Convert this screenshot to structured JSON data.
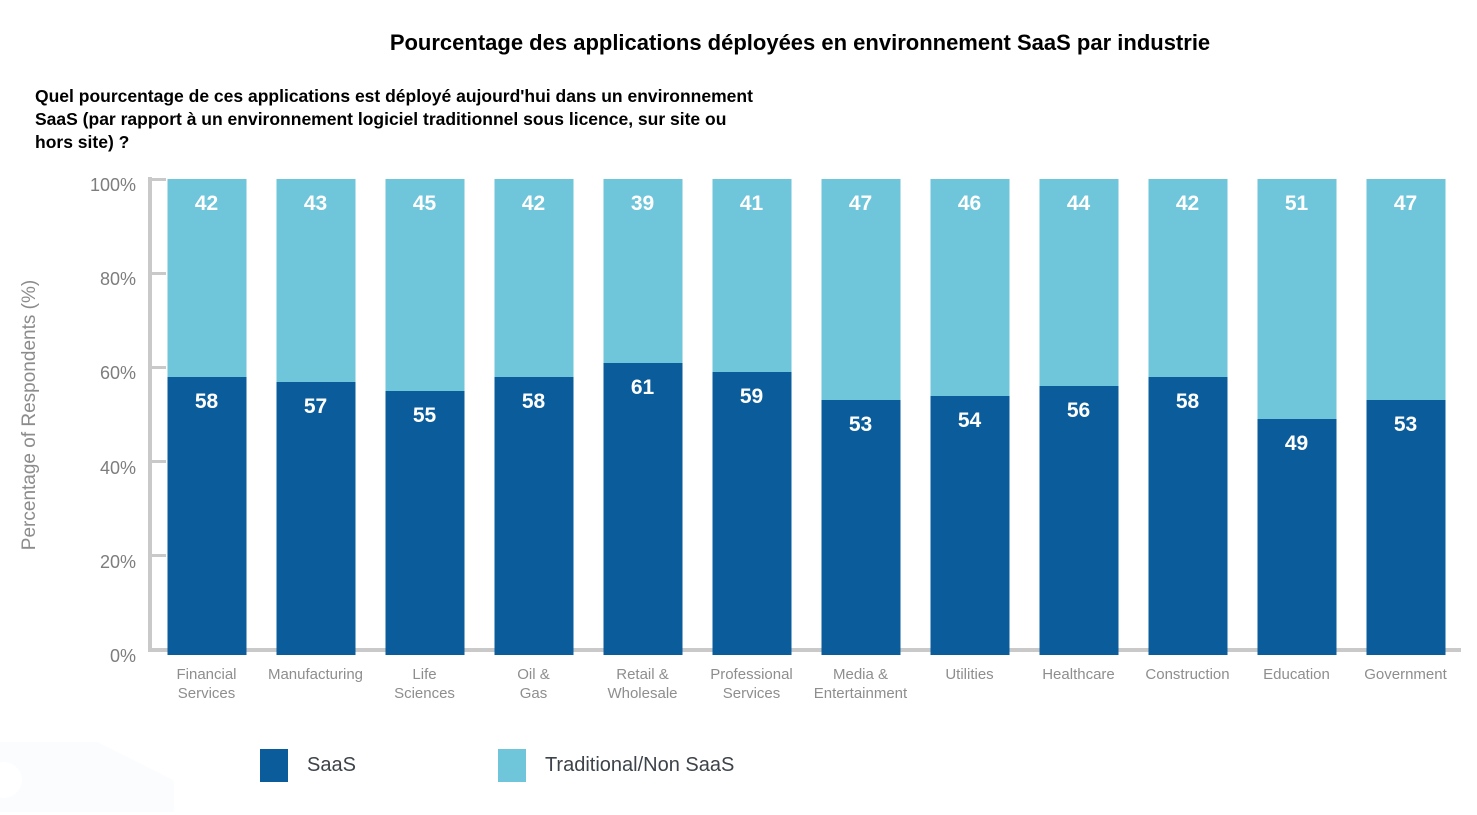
{
  "subtitle_question": "Quel pourcentage de ces applications est déployé aujourd'hui dans un environnement\nSaaS (par rapport à un environnement logiciel traditionnel sous licence, sur site ou\nhors site) ?",
  "chart_data": {
    "type": "bar",
    "stacked": true,
    "title": "Pourcentage des applications déployées en environnement SaaS par industrie",
    "ylabel": "Percentage of Respondents (%)",
    "ylim": [
      0,
      100
    ],
    "yticks": [
      "0%",
      "20%",
      "40%",
      "60%",
      "80%",
      "100%"
    ],
    "grid": false,
    "legend_position": "bottom",
    "categories": [
      "Financial\nServices",
      "Manufacturing",
      "Life\nSciences",
      "Oil &\nGas",
      "Retail &\nWholesale",
      "Professional\nServices",
      "Media &\nEntertainment",
      "Utilities",
      "Healthcare",
      "Construction",
      "Education",
      "Government"
    ],
    "series": [
      {
        "name": "SaaS",
        "color": "#0a5c9b",
        "values": [
          58,
          57,
          55,
          58,
          61,
          59,
          53,
          54,
          56,
          58,
          49,
          53
        ]
      },
      {
        "name": "Traditional/Non SaaS",
        "color": "#6fc5d9",
        "values": [
          42,
          43,
          45,
          42,
          39,
          41,
          47,
          46,
          44,
          42,
          51,
          47
        ]
      }
    ]
  },
  "colors": {
    "axis_line": "#c9c9c9",
    "tick_text": "#7d7d7d",
    "category_text": "#8e8e8e",
    "axis_title_text": "#8c8c8c",
    "legend_text": "#3d434a",
    "bar_label_text": "#ffffff",
    "title_text": "#000000"
  }
}
